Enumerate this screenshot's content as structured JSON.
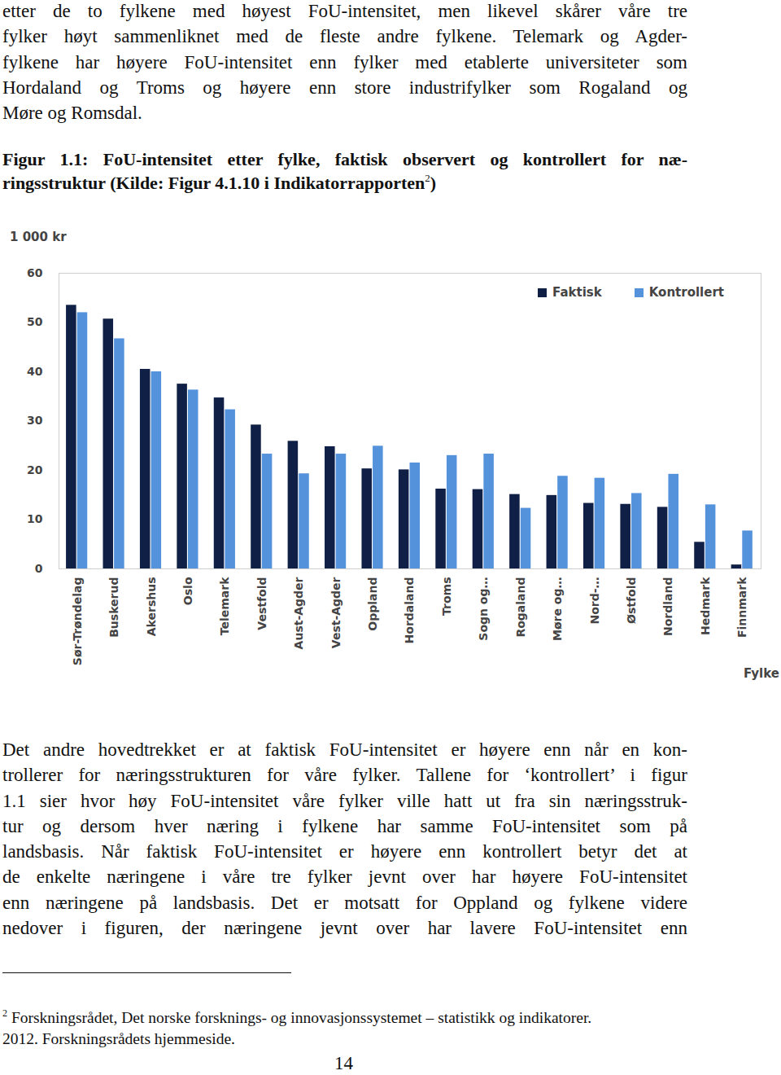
{
  "document": {
    "paragraph_top": [
      "etter de to fylkene med høyest FoU-intensitet, men likevel skårer våre tre",
      "fylker høyt sammenliknet med de fleste andre fylkene. Telemark og Agder-",
      "fylkene har høyere FoU-intensitet enn fylker med etablerte universiteter som",
      "Hordaland og Troms og høyere enn store industrifylker som Rogaland og",
      "Møre og Romsdal."
    ],
    "caption": {
      "lines": [
        "Figur 1.1: FoU-intensitet etter fylke, faktisk observert og kontrollert for næ-",
        "ringsstruktur (Kilde: Figur 4.1.10 i Indikatorrapporten"
      ],
      "ref": "2",
      "end": ")"
    },
    "paragraph_bottom": [
      "Det andre hovedtrekket er at faktisk FoU-intensitet er høyere enn når en kon-",
      "trollerer for næringsstrukturen for våre fylker. Tallene for ‘kontrollert’ i figur",
      "1.1 sier hvor høy FoU-intensitet våre fylker ville hatt ut fra sin næringsstruk-",
      "tur og dersom hver næring i fylkene har samme FoU-intensitet som på",
      "landsbasis. Når faktisk FoU-intensitet er høyere enn kontrollert betyr det at",
      "de enkelte næringene i våre tre fylker jevnt over har høyere FoU-intensitet",
      "enn næringene på landsbasis. Det er motsatt for Oppland og fylkene videre",
      "nedover i figuren, der næringene jevnt over har lavere FoU-intensitet enn"
    ],
    "footnote": {
      "mark": "2",
      "lines": [
        "Forskningsrådet, Det norske forsknings- og innovasjonssystemet – statistikk og indikatorer.",
        "2012. Forskningsrådets hjemmeside."
      ]
    },
    "page_number": "14"
  },
  "chart_data": {
    "type": "bar",
    "y_label": "1 000 kr",
    "x_label": "Fylke",
    "categories": [
      "Sør-Trøndelag",
      "Buskerud",
      "Akershus",
      "Oslo",
      "Telemark",
      "Vestfold",
      "Aust-Agder",
      "Vest-Agder",
      "Oppland",
      "Hordaland",
      "Troms",
      "Sogn og…",
      "Rogaland",
      "Møre og…",
      "Nord-…",
      "Østfold",
      "Nordland",
      "Hedmark",
      "Finnmark"
    ],
    "series": [
      {
        "name": "Faktisk",
        "color": "#0f1f45",
        "values": [
          53.5,
          50.7,
          40.5,
          37.5,
          34.7,
          29.2,
          25.9,
          24.8,
          20.3,
          20.1,
          16.2,
          16.1,
          15.1,
          14.9,
          13.3,
          13.1,
          12.5,
          5.4,
          0.8
        ]
      },
      {
        "name": "Kontrollert",
        "color": "#5592dc",
        "values": [
          52,
          46.7,
          40,
          36.3,
          32.3,
          23.3,
          19.3,
          23.3,
          24.9,
          21.5,
          23,
          23.3,
          12.3,
          18.8,
          18.4,
          15.3,
          19.2,
          13,
          7.7
        ]
      }
    ],
    "ylim": [
      0,
      60
    ],
    "yticks": [
      0,
      10,
      20,
      30,
      40,
      50,
      60
    ],
    "grid": false,
    "legend": "top-right"
  }
}
